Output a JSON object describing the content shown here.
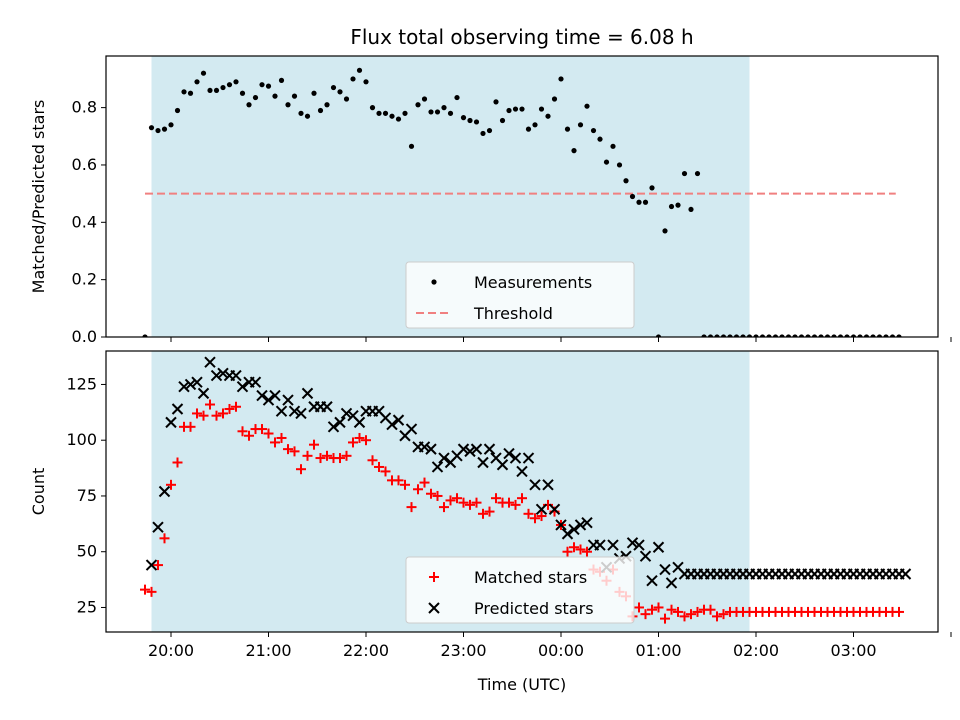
{
  "title": "Flux total observing time = 6.08 h",
  "colors": {
    "shade": "#d3eaf1",
    "measurement": "#000000",
    "threshold": "#f08080",
    "matched": "#ff0000",
    "predicted": "#000000"
  },
  "xaxis": {
    "label": "Time (UTC)",
    "ticks": [
      0,
      60,
      120,
      180,
      240,
      300,
      360,
      420,
      480
    ],
    "tick_labels": [
      "20:00",
      "21:00",
      "22:00",
      "23:00",
      "00:00",
      "01:00",
      "02:00",
      "03:00"
    ],
    "xlim": [
      -40,
      472
    ]
  },
  "chart_data": [
    {
      "type": "scatter",
      "panel": "top",
      "ylabel": "Matched/Predicted stars",
      "ylim": [
        0,
        0.98
      ],
      "yticks": [
        0.0,
        0.2,
        0.4,
        0.6,
        0.8
      ],
      "ytick_labels": [
        "0.0",
        "0.2",
        "0.4",
        "0.6",
        "0.8"
      ],
      "shaded_span": [
        -12,
        356
      ],
      "threshold": {
        "name": "Threshold",
        "value": 0.5,
        "x_range": [
          -16,
          446
        ]
      },
      "legend": {
        "placement": "lower-center",
        "entries": [
          "Measurements",
          "Threshold"
        ]
      },
      "series": [
        {
          "name": "Measurements",
          "x": [
            -16,
            -12,
            -8,
            -4,
            0,
            4,
            8,
            12,
            16,
            20,
            24,
            28,
            32,
            36,
            40,
            44,
            48,
            52,
            56,
            60,
            64,
            68,
            72,
            76,
            80,
            84,
            88,
            92,
            96,
            100,
            104,
            108,
            112,
            116,
            120,
            124,
            128,
            132,
            136,
            140,
            144,
            148,
            152,
            156,
            160,
            164,
            168,
            172,
            176,
            180,
            184,
            188,
            192,
            196,
            200,
            204,
            208,
            212,
            216,
            220,
            224,
            228,
            232,
            236,
            240,
            244,
            248,
            252,
            256,
            260,
            264,
            268,
            272,
            276,
            280,
            284,
            288,
            292,
            296,
            300,
            304,
            308,
            312,
            316,
            320,
            324,
            328,
            332,
            336,
            340,
            344,
            348,
            352,
            356,
            360,
            364,
            368,
            372,
            376,
            380,
            384,
            388,
            392,
            396,
            400,
            404,
            408,
            412,
            416,
            420,
            424,
            428,
            432,
            436,
            440,
            444,
            448
          ],
          "y": [
            0.0,
            0.73,
            0.72,
            0.725,
            0.74,
            0.79,
            0.855,
            0.85,
            0.89,
            0.92,
            0.86,
            0.86,
            0.87,
            0.88,
            0.89,
            0.85,
            0.81,
            0.835,
            0.88,
            0.875,
            0.84,
            0.895,
            0.81,
            0.84,
            0.78,
            0.77,
            0.85,
            0.79,
            0.81,
            0.87,
            0.855,
            0.83,
            0.9,
            0.93,
            0.89,
            0.8,
            0.78,
            0.78,
            0.77,
            0.76,
            0.78,
            0.665,
            0.81,
            0.83,
            0.785,
            0.785,
            0.8,
            0.78,
            0.835,
            0.765,
            0.755,
            0.75,
            0.71,
            0.72,
            0.82,
            0.755,
            0.79,
            0.795,
            0.795,
            0.725,
            0.74,
            0.795,
            0.77,
            0.83,
            0.9,
            0.725,
            0.65,
            0.74,
            0.805,
            0.72,
            0.69,
            0.61,
            0.665,
            0.6,
            0.545,
            0.49,
            0.47,
            0.47,
            0.52,
            0.0,
            0.37,
            0.455,
            0.46,
            0.57,
            0.445,
            0.57,
            0.0,
            0.0,
            0.0,
            0.0,
            0.0,
            0.0,
            0.0,
            0.0,
            0.0,
            0.0,
            0.0,
            0.0,
            0.0,
            0.0,
            0.0,
            0.0,
            0.0,
            0.0,
            0.0,
            0.0,
            0.0,
            0.0,
            0.0,
            0.0,
            0.0,
            0.0,
            0.0,
            0.0,
            0.0,
            0.0,
            0.0
          ]
        }
      ]
    },
    {
      "type": "scatter",
      "panel": "bottom",
      "ylabel": "Count",
      "ylim": [
        14,
        140
      ],
      "yticks": [
        25,
        50,
        75,
        100,
        125
      ],
      "ytick_labels": [
        "25",
        "50",
        "75",
        "100",
        "125"
      ],
      "shaded_span": [
        -12,
        356
      ],
      "legend": {
        "placement": "lower-center",
        "entries": [
          "Matched stars",
          "Predicted stars"
        ]
      },
      "series": [
        {
          "name": "Matched stars",
          "x": [
            -16,
            -12,
            -8,
            -4,
            0,
            4,
            8,
            12,
            16,
            20,
            24,
            28,
            32,
            36,
            40,
            44,
            48,
            52,
            56,
            60,
            64,
            68,
            72,
            76,
            80,
            84,
            88,
            92,
            96,
            100,
            104,
            108,
            112,
            116,
            120,
            124,
            128,
            132,
            136,
            140,
            144,
            148,
            152,
            156,
            160,
            164,
            168,
            172,
            176,
            180,
            184,
            188,
            192,
            196,
            200,
            204,
            208,
            212,
            216,
            220,
            224,
            228,
            232,
            236,
            240,
            244,
            248,
            252,
            256,
            260,
            264,
            268,
            272,
            276,
            280,
            284,
            288,
            292,
            296,
            300,
            304,
            308,
            312,
            316,
            320,
            324,
            328,
            332,
            336,
            340,
            344,
            348,
            352,
            356,
            360,
            364,
            368,
            372,
            376,
            380,
            384,
            388,
            392,
            396,
            400,
            404,
            408,
            412,
            416,
            420,
            424,
            428,
            432,
            436,
            440,
            444,
            448
          ],
          "y": [
            33,
            32,
            44,
            56,
            80,
            90,
            106,
            106,
            112,
            111,
            116,
            111,
            112,
            114,
            115,
            104,
            102,
            105,
            105,
            103,
            99,
            101,
            96,
            95,
            87,
            93,
            98,
            92,
            93,
            92,
            92,
            93,
            99,
            101,
            100,
            91,
            88,
            86,
            82,
            82,
            80,
            70,
            78,
            81,
            76,
            75,
            70,
            73,
            74,
            72,
            71,
            72,
            67,
            68,
            74,
            72,
            72,
            71,
            74,
            67,
            65,
            66,
            71,
            68,
            62,
            50,
            52,
            51,
            50,
            42,
            41,
            37,
            42,
            32,
            30,
            21,
            25,
            22,
            24,
            25,
            20,
            24,
            23,
            21,
            22,
            23,
            24,
            24,
            21,
            22,
            23,
            23,
            23,
            23,
            23,
            23,
            23,
            23,
            23,
            23,
            23,
            23,
            23,
            23,
            23,
            23,
            23,
            23,
            23,
            23,
            23,
            23,
            23,
            23,
            23,
            23,
            23
          ]
        },
        {
          "name": "Predicted stars",
          "x": [
            -12,
            -8,
            -4,
            0,
            4,
            8,
            12,
            16,
            20,
            24,
            28,
            32,
            36,
            40,
            44,
            48,
            52,
            56,
            60,
            64,
            68,
            72,
            76,
            80,
            84,
            88,
            92,
            96,
            100,
            104,
            108,
            112,
            116,
            120,
            124,
            128,
            132,
            136,
            140,
            144,
            148,
            152,
            156,
            160,
            164,
            168,
            172,
            176,
            180,
            184,
            188,
            192,
            196,
            200,
            204,
            208,
            212,
            216,
            220,
            224,
            228,
            232,
            236,
            240,
            244,
            248,
            252,
            256,
            260,
            264,
            268,
            272,
            276,
            280,
            284,
            288,
            292,
            296,
            300,
            304,
            308,
            312,
            316,
            320,
            324,
            328,
            332,
            336,
            340,
            344,
            348,
            352,
            356,
            360,
            364,
            368,
            372,
            376,
            380,
            384,
            388,
            392,
            396,
            400,
            404,
            408,
            412,
            416,
            420,
            424,
            428,
            432,
            436,
            440,
            444,
            448,
            452
          ],
          "y": [
            44,
            61,
            77,
            108,
            114,
            124,
            125,
            126,
            121,
            135,
            129,
            130,
            129,
            129,
            124,
            126,
            126,
            120,
            118,
            120,
            113,
            118,
            113,
            112,
            121,
            115,
            115,
            115,
            106,
            108,
            112,
            111,
            108,
            113,
            113,
            113,
            110,
            107,
            109,
            102,
            105,
            97,
            97,
            96,
            88,
            92,
            90,
            93,
            96,
            95,
            96,
            90,
            96,
            92,
            89,
            94,
            92,
            86,
            92,
            80,
            69,
            80,
            69,
            62,
            58,
            60,
            62,
            63,
            53,
            53,
            43,
            53,
            47,
            48,
            54,
            53,
            48,
            37,
            52,
            42,
            36,
            43,
            40,
            40,
            40,
            40,
            40,
            40,
            40,
            40,
            40,
            40,
            40,
            40,
            40,
            40,
            40,
            40,
            40,
            40,
            40,
            40,
            40,
            40,
            40,
            40,
            40,
            40,
            40,
            40,
            40,
            40,
            40,
            40,
            40,
            40,
            40
          ]
        }
      ]
    }
  ]
}
